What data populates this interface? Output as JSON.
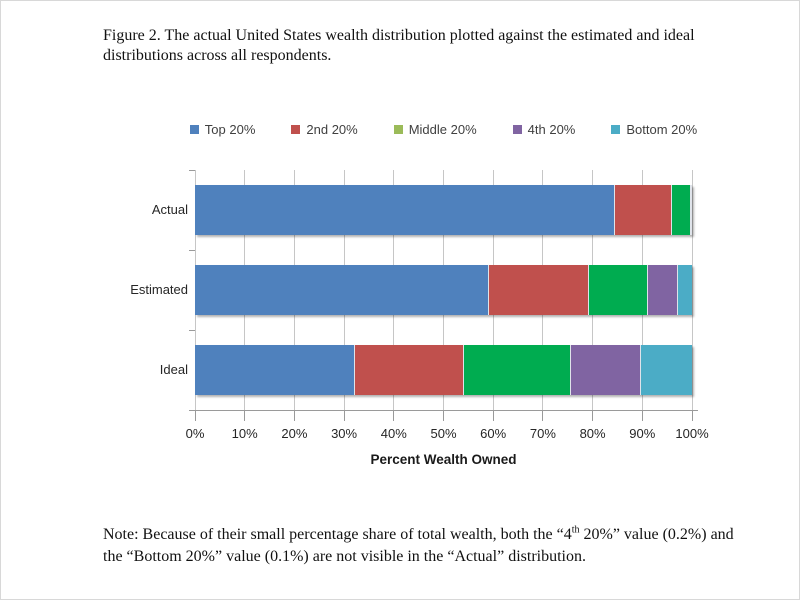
{
  "figure": {
    "caption": "Figure 2. The actual United States wealth distribution plotted against the estimated and ideal distributions across all respondents.",
    "note_before_sup": "Note: Because of their small percentage share of total wealth, both the “4",
    "note_sup": "th",
    "note_after_sup": " 20%” value (0.2%) and the “Bottom 20%” value (0.1%) are not visible in the “Actual” distribution."
  },
  "chart_data": {
    "type": "bar",
    "orientation": "horizontal-stacked",
    "title": "",
    "categories": [
      "Actual",
      "Estimated",
      "Ideal"
    ],
    "series": [
      {
        "name": "Top 20%",
        "color": "#4F81BD",
        "legend_color": "#4F81BD",
        "values": [
          84.4,
          59.0,
          32.0
        ]
      },
      {
        "name": "2nd 20%",
        "color": "#C0504D",
        "legend_color": "#C0504D",
        "values": [
          11.3,
          20.0,
          22.0
        ]
      },
      {
        "name": "Middle 20%",
        "color": "#00AC50",
        "legend_color": "#9BBB59",
        "values": [
          3.9,
          12.0,
          21.5
        ]
      },
      {
        "name": "4th 20%",
        "color": "#8064A2",
        "legend_color": "#8064A2",
        "values": [
          0.2,
          6.0,
          14.0
        ]
      },
      {
        "name": "Bottom 20%",
        "color": "#4BACC6",
        "legend_color": "#4BACC6",
        "values": [
          0.1,
          3.0,
          10.5
        ]
      }
    ],
    "xlabel": "Percent Wealth Owned",
    "x_ticks": [
      "0%",
      "10%",
      "20%",
      "30%",
      "40%",
      "50%",
      "60%",
      "70%",
      "80%",
      "90%",
      "100%"
    ],
    "xlim": [
      0,
      100
    ],
    "legend_position": "top",
    "grid": "vertical",
    "note_values": {
      "actual_4th_20": "0.2%",
      "actual_bottom_20": "0.1%"
    }
  }
}
